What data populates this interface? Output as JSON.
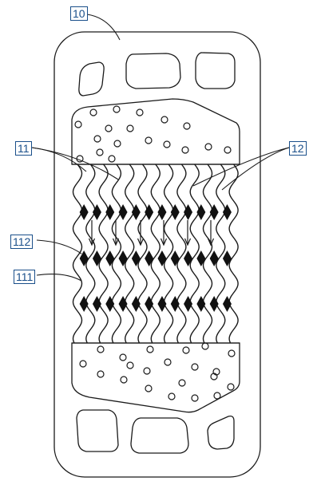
{
  "labels": {
    "plate": "10",
    "left_channels": "11",
    "right_channels": "12",
    "contact_points": "112",
    "flow_channel": "111"
  },
  "colors": {
    "line": "#1a1a1a",
    "label": "#1a4f8a"
  }
}
